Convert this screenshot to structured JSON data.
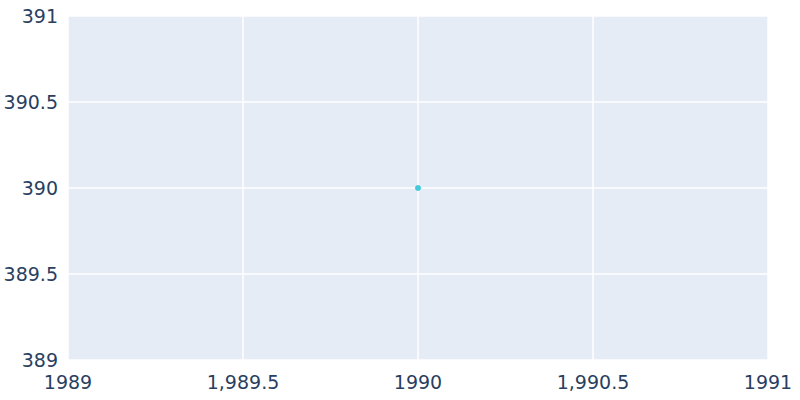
{
  "chart_data": {
    "type": "scatter",
    "x": [
      1990
    ],
    "values": [
      390
    ],
    "color": "#17becf",
    "marker": "circle",
    "xlim": [
      1989,
      1991
    ],
    "xticks": [
      1989,
      {
        "value": 1989.5,
        "label": "1,989.5"
      },
      1990,
      {
        "value": 1990.5,
        "label": "1,990.5"
      },
      1991
    ],
    "ylim": [
      389,
      391
    ],
    "yticks": [
      389,
      389.5,
      390,
      390.5,
      391
    ],
    "grid": true
  }
}
